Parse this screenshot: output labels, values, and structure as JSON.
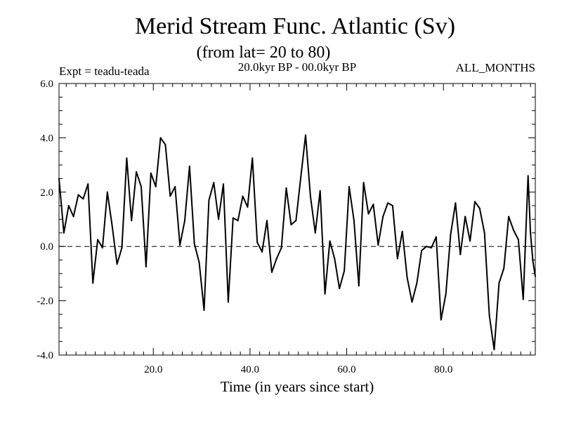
{
  "chart_data": {
    "type": "line",
    "title": "Merid Stream Func. Atlantic (Sv)",
    "subtitle": "(from lat= 20 to 80)",
    "left_label": "Expt = teadu-teada",
    "center_label": "20.0kyr BP - 00.0kyr BP",
    "right_label": "ALL_MONTHS",
    "xlabel": "Time (in years since start)",
    "ylabel": "",
    "xlim": [
      0.5,
      99.0
    ],
    "ylim": [
      -4.0,
      6.0
    ],
    "x_ticks": [
      20,
      40,
      60,
      80
    ],
    "x_tick_labels": [
      "20.0",
      "40.0",
      "60.0",
      "80.0"
    ],
    "y_ticks": [
      -4,
      -2,
      0,
      2,
      4,
      6
    ],
    "y_tick_labels": [
      "-4.0",
      "-2.0",
      "0.0",
      "2.0",
      "4.0",
      "6.0"
    ],
    "zero_line": 0.0,
    "series": [
      {
        "name": "Merid Stream Func.",
        "color": "#000000",
        "x": [
          0.5,
          1.5,
          2.5,
          3.5,
          4.5,
          5.5,
          6.5,
          7.5,
          8.5,
          9.5,
          10.5,
          11.5,
          12.5,
          13.5,
          14.5,
          15.5,
          16.5,
          17.5,
          18.5,
          19.5,
          20.5,
          21.5,
          22.5,
          23.5,
          24.5,
          25.5,
          26.5,
          27.5,
          28.5,
          29.5,
          30.5,
          31.5,
          32.5,
          33.5,
          34.5,
          35.5,
          36.5,
          37.5,
          38.5,
          39.5,
          40.5,
          41.5,
          42.5,
          43.5,
          44.5,
          45.5,
          46.5,
          47.5,
          48.5,
          49.5,
          50.5,
          51.5,
          52.5,
          53.5,
          54.5,
          55.5,
          56.5,
          57.5,
          58.5,
          59.5,
          60.5,
          61.5,
          62.5,
          63.5,
          64.5,
          65.5,
          66.5,
          67.5,
          68.5,
          69.5,
          70.5,
          71.5,
          72.5,
          73.5,
          74.5,
          75.5,
          76.5,
          77.5,
          78.5,
          79.5,
          80.5,
          81.5,
          82.5,
          83.5,
          84.5,
          85.5,
          86.5,
          87.5,
          88.5,
          89.5,
          90.5,
          91.5,
          92.5,
          93.5,
          94.5,
          95.5,
          96.5,
          97.5,
          98.0,
          98.5,
          99.0
        ],
        "values": [
          2.5,
          0.5,
          1.5,
          1.1,
          1.9,
          1.75,
          2.3,
          -1.35,
          0.25,
          -0.05,
          2.0,
          0.75,
          -0.65,
          -0.05,
          3.25,
          0.95,
          2.75,
          2.2,
          -0.75,
          2.7,
          2.2,
          4.0,
          3.75,
          1.85,
          2.2,
          0.05,
          0.95,
          2.95,
          0.1,
          -0.6,
          -2.35,
          1.7,
          2.35,
          1.0,
          2.3,
          -2.05,
          1.05,
          0.95,
          1.85,
          1.45,
          3.25,
          0.15,
          -0.2,
          0.95,
          -0.95,
          -0.45,
          -0.05,
          2.15,
          0.8,
          0.95,
          2.55,
          4.1,
          1.85,
          0.5,
          2.05,
          -1.75,
          0.2,
          -0.45,
          -1.55,
          -0.9,
          2.2,
          0.95,
          -1.45,
          2.35,
          1.2,
          1.55,
          0.05,
          1.1,
          1.6,
          1.5,
          -0.45,
          0.55,
          -1.15,
          -2.05,
          -1.35,
          -0.15,
          0.0,
          -0.05,
          0.35,
          -2.7,
          -1.75,
          0.45,
          1.6,
          -0.3,
          1.1,
          0.2,
          1.65,
          1.4,
          0.5,
          -2.55,
          -3.8,
          -1.35,
          -0.8,
          1.1,
          0.6,
          0.25,
          -1.95,
          2.6,
          0.5,
          -0.55,
          -1.1
        ]
      }
    ]
  }
}
